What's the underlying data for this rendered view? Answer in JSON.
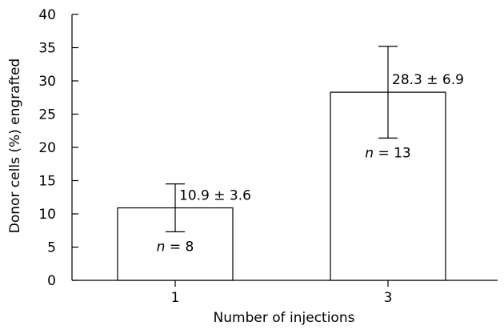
{
  "chart_data": {
    "type": "bar",
    "title": "",
    "xlabel": "Number of injections",
    "ylabel": "Donor cells (%) engrafted",
    "ylim": [
      0,
      40
    ],
    "yticks": [
      0,
      5,
      10,
      15,
      20,
      25,
      30,
      35,
      40
    ],
    "categories": [
      "1",
      "3"
    ],
    "values": [
      10.9,
      28.3
    ],
    "errors": [
      3.6,
      6.9
    ],
    "value_labels": [
      "10.9 ± 3.6",
      "28.3 ± 6.9"
    ],
    "n_labels": [
      {
        "prefix": "n",
        "text": " = 8"
      },
      {
        "prefix": "n",
        "text": " = 13"
      }
    ],
    "bar_fill": "#ffffff",
    "bar_stroke": "#000000",
    "grid": false,
    "legend": "none"
  }
}
